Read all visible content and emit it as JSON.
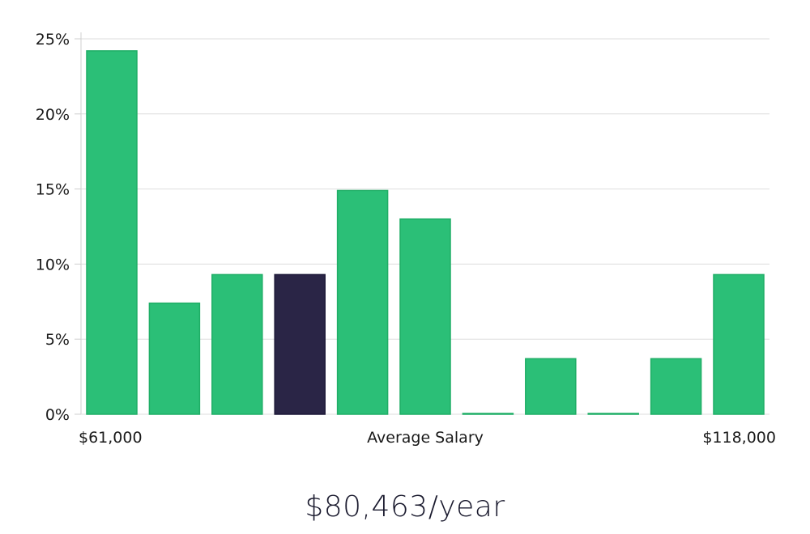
{
  "chart_data": {
    "type": "bar",
    "values": [
      24.2,
      7.4,
      9.3,
      9.3,
      14.9,
      13.0,
      0.05,
      3.7,
      0.05,
      3.7,
      9.3
    ],
    "highlight_index": 3,
    "ylim": [
      0,
      25
    ],
    "y_ticks": [
      "0%",
      "5%",
      "10%",
      "15%",
      "20%",
      "25%"
    ],
    "y_tick_values": [
      0,
      5,
      10,
      15,
      20,
      25
    ],
    "x_min_label": "$61,000",
    "x_center_label": "Average Salary",
    "x_max_label": "$118,000",
    "grid": true,
    "colors": {
      "bar": "#2bbf77",
      "bar_stroke": "#1fae66",
      "highlight": "#2a2546",
      "grid": "#dddddd",
      "axis": "#cfcfcf"
    }
  },
  "summary": {
    "salary": "$80,463/year"
  }
}
